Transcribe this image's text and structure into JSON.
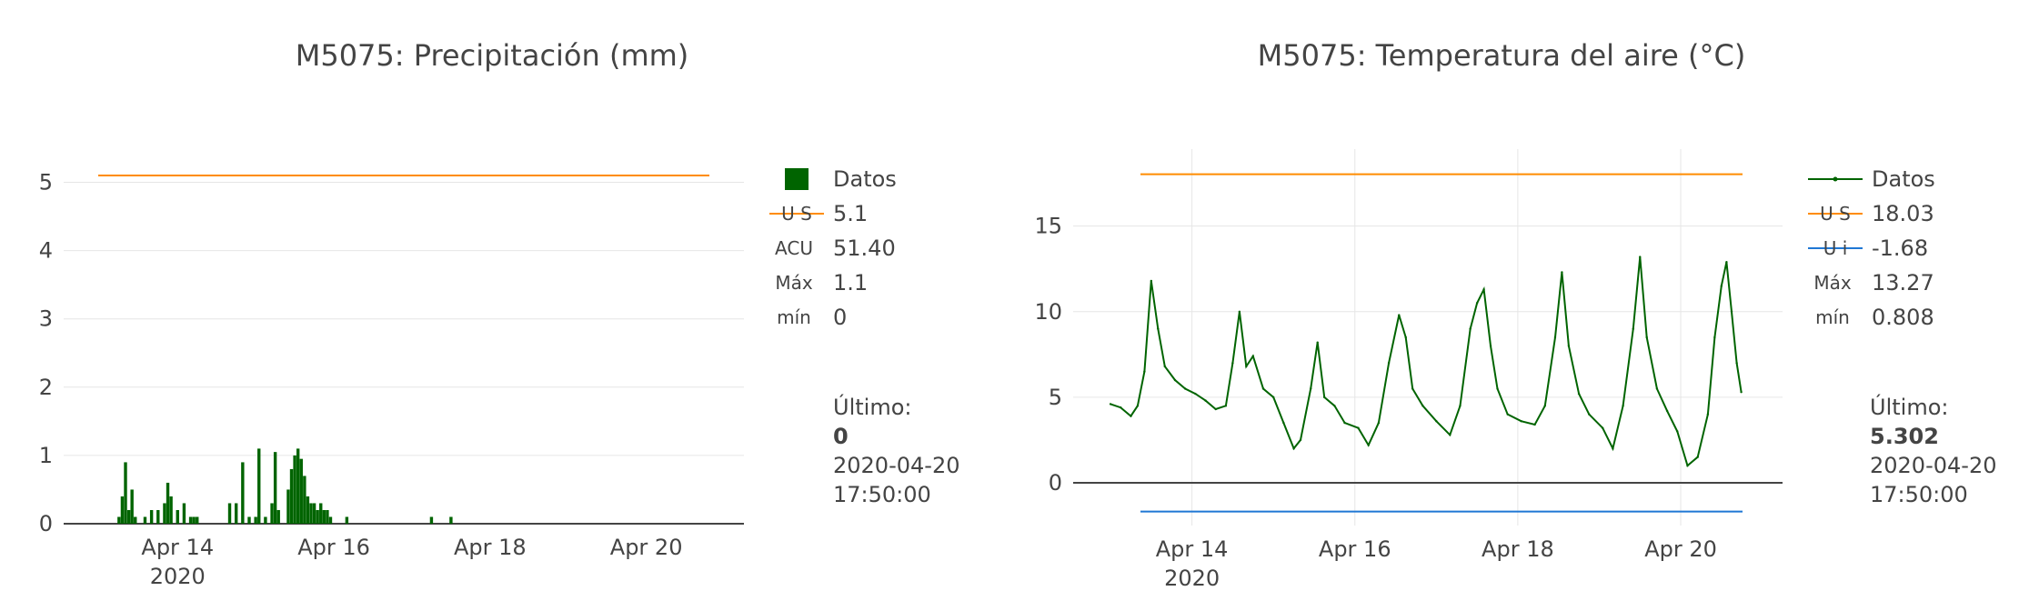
{
  "chart_data": [
    {
      "type": "bar",
      "title": "M5075: Precipitación (mm)",
      "xlabel": "",
      "ylabel": "",
      "x_ticks": [
        "Apr 14",
        "Apr 16",
        "Apr 18",
        "Apr 20"
      ],
      "x_tick_year": "2020",
      "y_ticks": [
        "0",
        "1",
        "2",
        "3",
        "4",
        "5"
      ],
      "ylim": [
        0,
        5.3
      ],
      "x_range_days": [
        "2020-04-12 13:00",
        "2020-04-21 06:00"
      ],
      "grid": "horizontal",
      "legend_position": "right",
      "series": [
        {
          "name": "Datos",
          "color": "#006400",
          "points": [
            [
              "2020-04-13 06:00",
              0.1
            ],
            [
              "2020-04-13 07:00",
              0.4
            ],
            [
              "2020-04-13 08:00",
              0.9
            ],
            [
              "2020-04-13 09:00",
              0.2
            ],
            [
              "2020-04-13 10:00",
              0.5
            ],
            [
              "2020-04-13 11:00",
              0.1
            ],
            [
              "2020-04-13 14:00",
              0.1
            ],
            [
              "2020-04-13 16:00",
              0.2
            ],
            [
              "2020-04-13 18:00",
              0.2
            ],
            [
              "2020-04-13 20:00",
              0.3
            ],
            [
              "2020-04-13 21:00",
              0.6
            ],
            [
              "2020-04-13 22:00",
              0.4
            ],
            [
              "2020-04-14 00:00",
              0.2
            ],
            [
              "2020-04-14 02:00",
              0.3
            ],
            [
              "2020-04-14 04:00",
              0.1
            ],
            [
              "2020-04-14 05:00",
              0.1
            ],
            [
              "2020-04-14 06:00",
              0.1
            ],
            [
              "2020-04-14 16:00",
              0.3
            ],
            [
              "2020-04-14 18:00",
              0.3
            ],
            [
              "2020-04-14 20:00",
              0.9
            ],
            [
              "2020-04-14 22:00",
              0.1
            ],
            [
              "2020-04-15 00:00",
              0.1
            ],
            [
              "2020-04-15 01:00",
              1.1
            ],
            [
              "2020-04-15 03:00",
              0.1
            ],
            [
              "2020-04-15 05:00",
              0.3
            ],
            [
              "2020-04-15 06:00",
              1.05
            ],
            [
              "2020-04-15 07:00",
              0.2
            ],
            [
              "2020-04-15 10:00",
              0.5
            ],
            [
              "2020-04-15 11:00",
              0.8
            ],
            [
              "2020-04-15 12:00",
              1.0
            ],
            [
              "2020-04-15 13:00",
              1.1
            ],
            [
              "2020-04-15 14:00",
              0.95
            ],
            [
              "2020-04-15 15:00",
              0.7
            ],
            [
              "2020-04-15 16:00",
              0.4
            ],
            [
              "2020-04-15 17:00",
              0.3
            ],
            [
              "2020-04-15 18:00",
              0.3
            ],
            [
              "2020-04-15 19:00",
              0.2
            ],
            [
              "2020-04-15 20:00",
              0.3
            ],
            [
              "2020-04-15 21:00",
              0.2
            ],
            [
              "2020-04-15 22:00",
              0.2
            ],
            [
              "2020-04-15 23:00",
              0.1
            ],
            [
              "2020-04-16 04:00",
              0.1
            ],
            [
              "2020-04-17 06:00",
              0.1
            ],
            [
              "2020-04-17 12:00",
              0.1
            ]
          ]
        },
        {
          "name": "U S",
          "type": "line",
          "color": "#ff8c00",
          "value": 5.1
        }
      ],
      "legend": [
        {
          "symbol": "square",
          "color": "#006400",
          "label": "Datos"
        },
        {
          "symbol": "line",
          "color": "#ff8c00",
          "tag": "U S",
          "label": "5.1"
        },
        {
          "symbol": "text",
          "tag": "ACU",
          "label": "51.40"
        },
        {
          "symbol": "text",
          "tag": "Máx",
          "label": "1.1"
        },
        {
          "symbol": "text",
          "tag": "mín",
          "label": "0"
        }
      ],
      "last": {
        "heading": "Último:",
        "value": "0",
        "date": "2020-04-20",
        "time": "17:50:00"
      }
    },
    {
      "type": "line",
      "title": "M5075: Temperatura del aire (°C)",
      "xlabel": "",
      "ylabel": "",
      "x_ticks": [
        "Apr 14",
        "Apr 16",
        "Apr 18",
        "Apr 20"
      ],
      "x_tick_year": "2020",
      "y_ticks": [
        "0",
        "5",
        "10",
        "15"
      ],
      "ylim": [
        -2.5,
        19.5
      ],
      "x_range_days": [
        "2020-04-12 13:00",
        "2020-04-21 06:00"
      ],
      "grid": "both",
      "legend_position": "right",
      "series": [
        {
          "name": "Datos",
          "color": "#006400",
          "points": [
            [
              "2020-04-13 00:00",
              4.6
            ],
            [
              "2020-04-13 03:00",
              4.4
            ],
            [
              "2020-04-13 06:00",
              3.9
            ],
            [
              "2020-04-13 08:00",
              4.5
            ],
            [
              "2020-04-13 10:00",
              6.5
            ],
            [
              "2020-04-13 12:00",
              11.8
            ],
            [
              "2020-04-13 14:00",
              9.0
            ],
            [
              "2020-04-13 16:00",
              6.8
            ],
            [
              "2020-04-13 19:00",
              6.0
            ],
            [
              "2020-04-13 22:00",
              5.5
            ],
            [
              "2020-04-14 01:00",
              5.2
            ],
            [
              "2020-04-14 04:00",
              4.8
            ],
            [
              "2020-04-14 07:00",
              4.3
            ],
            [
              "2020-04-14 10:00",
              4.5
            ],
            [
              "2020-04-14 12:00",
              7.0
            ],
            [
              "2020-04-14 14:00",
              10.0
            ],
            [
              "2020-04-14 16:00",
              6.8
            ],
            [
              "2020-04-14 18:00",
              7.4
            ],
            [
              "2020-04-14 21:00",
              5.5
            ],
            [
              "2020-04-15 00:00",
              5.0
            ],
            [
              "2020-04-15 03:00",
              3.5
            ],
            [
              "2020-04-15 06:00",
              2.0
            ],
            [
              "2020-04-15 08:00",
              2.5
            ],
            [
              "2020-04-15 11:00",
              5.5
            ],
            [
              "2020-04-15 13:00",
              8.2
            ],
            [
              "2020-04-15 15:00",
              5.0
            ],
            [
              "2020-04-15 18:00",
              4.5
            ],
            [
              "2020-04-15 21:00",
              3.5
            ],
            [
              "2020-04-16 01:00",
              3.2
            ],
            [
              "2020-04-16 04:00",
              2.2
            ],
            [
              "2020-04-16 07:00",
              3.5
            ],
            [
              "2020-04-16 10:00",
              7.0
            ],
            [
              "2020-04-16 13:00",
              9.8
            ],
            [
              "2020-04-16 15:00",
              8.5
            ],
            [
              "2020-04-16 17:00",
              5.5
            ],
            [
              "2020-04-16 20:00",
              4.5
            ],
            [
              "2020-04-17 00:00",
              3.6
            ],
            [
              "2020-04-17 04:00",
              2.8
            ],
            [
              "2020-04-17 07:00",
              4.5
            ],
            [
              "2020-04-17 10:00",
              9.0
            ],
            [
              "2020-04-17 12:00",
              10.5
            ],
            [
              "2020-04-17 14:00",
              11.3
            ],
            [
              "2020-04-17 16:00",
              8.0
            ],
            [
              "2020-04-17 18:00",
              5.5
            ],
            [
              "2020-04-17 21:00",
              4.0
            ],
            [
              "2020-04-18 01:00",
              3.6
            ],
            [
              "2020-04-18 05:00",
              3.4
            ],
            [
              "2020-04-18 08:00",
              4.5
            ],
            [
              "2020-04-18 11:00",
              8.5
            ],
            [
              "2020-04-18 13:00",
              12.3
            ],
            [
              "2020-04-18 15:00",
              8.0
            ],
            [
              "2020-04-18 18:00",
              5.2
            ],
            [
              "2020-04-18 21:00",
              4.0
            ],
            [
              "2020-04-19 01:00",
              3.2
            ],
            [
              "2020-04-19 04:00",
              2.0
            ],
            [
              "2020-04-19 07:00",
              4.5
            ],
            [
              "2020-04-19 10:00",
              9.0
            ],
            [
              "2020-04-19 12:00",
              13.2
            ],
            [
              "2020-04-19 14:00",
              8.5
            ],
            [
              "2020-04-19 17:00",
              5.5
            ],
            [
              "2020-04-19 20:00",
              4.2
            ],
            [
              "2020-04-19 23:00",
              3.0
            ],
            [
              "2020-04-20 02:00",
              1.0
            ],
            [
              "2020-04-20 05:00",
              1.5
            ],
            [
              "2020-04-20 08:00",
              4.0
            ],
            [
              "2020-04-20 10:00",
              8.5
            ],
            [
              "2020-04-20 12:00",
              11.5
            ],
            [
              "2020-04-20 13:30",
              12.9
            ],
            [
              "2020-04-20 15:00",
              10.0
            ],
            [
              "2020-04-20 16:30",
              7.0
            ],
            [
              "2020-04-20 17:50",
              5.3
            ]
          ]
        },
        {
          "name": "U S",
          "type": "line",
          "color": "#ff8c00",
          "value": 18.03
        },
        {
          "name": "U i",
          "type": "line",
          "color": "#1f77d4",
          "value": -1.68
        }
      ],
      "legend": [
        {
          "symbol": "line-marker",
          "color": "#006400",
          "label": "Datos"
        },
        {
          "symbol": "line",
          "color": "#ff8c00",
          "tag": "U S",
          "label": "18.03"
        },
        {
          "symbol": "line",
          "color": "#1f77d4",
          "tag": "U i",
          "label": "-1.68"
        },
        {
          "symbol": "text",
          "tag": "Máx",
          "label": "13.27"
        },
        {
          "symbol": "text",
          "tag": "mín",
          "label": "0.808"
        }
      ],
      "last": {
        "heading": "Último:",
        "value": "5.302",
        "date": "2020-04-20",
        "time": "17:50:00"
      }
    }
  ]
}
